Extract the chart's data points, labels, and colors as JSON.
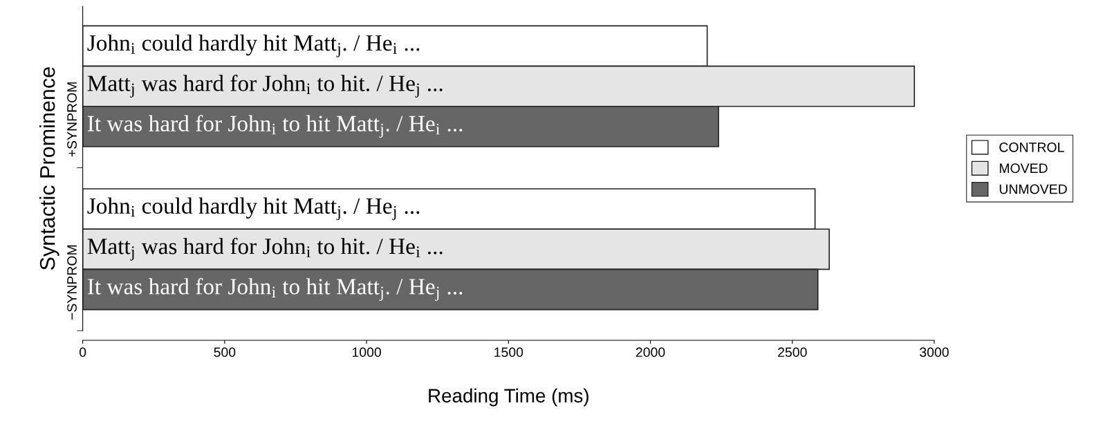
{
  "chart_data": {
    "type": "bar",
    "orientation": "horizontal",
    "categories": [
      "+SYNPROM",
      "−SYNPROM"
    ],
    "xlabel": "Reading Time (ms)",
    "ylabel": "Syntactic Prominence",
    "xlim": [
      0,
      3000
    ],
    "xticks": [
      0,
      500,
      1000,
      1500,
      2000,
      2500,
      3000
    ],
    "legend": "right",
    "grid": false,
    "series": [
      {
        "name": "CONTROL",
        "color": "#ffffff",
        "values": [
          2200,
          2580
        ],
        "value_labels": [
          "John$_{i}$ could hardly hit Matt$_{j}$. / He$_{i}$ ...",
          "John$_{i}$ could hardly hit Matt$_{j}$. / He$_{j}$ ..."
        ]
      },
      {
        "name": "MOVED",
        "color": "#e5e5e5",
        "values": [
          2930,
          2630
        ],
        "value_labels": [
          "Matt$_{j}$ was hard for John$_{i}$ to hit. / He$_{j}$ ...",
          "Matt$_{j}$ was hard for John$_{i}$ to hit. / He$_{i}$ ..."
        ]
      },
      {
        "name": "UNMOVED",
        "color": "#666666",
        "values": [
          2240,
          2590
        ],
        "value_labels": [
          "It was hard for John$_{i}$ to hit Matt$_{j}$. / He$_{i}$ ...",
          "It was hard for John$_{i}$ to hit Matt$_{j}$. / He$_{j}$ ..."
        ]
      }
    ]
  }
}
